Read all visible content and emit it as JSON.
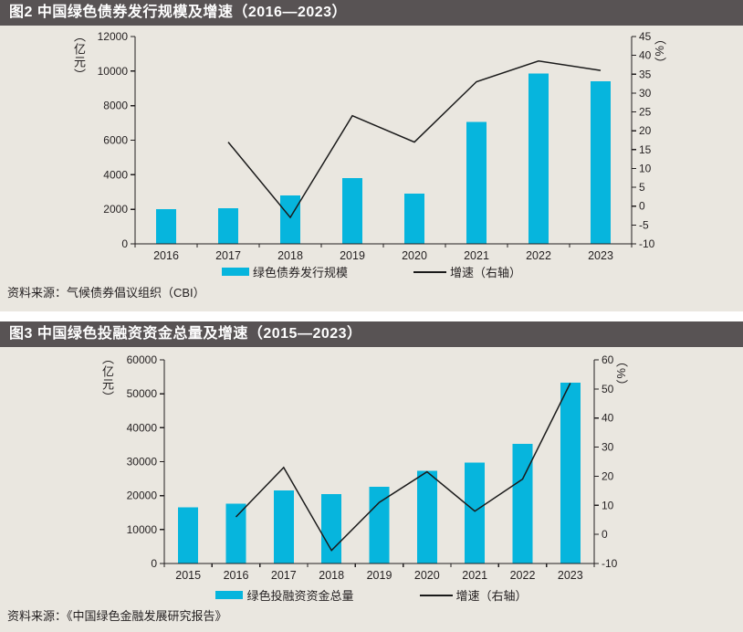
{
  "colors": {
    "bar": "#06B5DD",
    "line": "#1A1A1A",
    "titlebar_bg": "#585354",
    "titlebar_text": "#FFFFFF",
    "section_bg": "#EAE7E0",
    "page_bg": "#FFFFFF",
    "text": "#231F20"
  },
  "chart_data": [
    {
      "type": "combo-bar-line",
      "title": "图2 中国绿色债券发行规模及增速（2016—2023）",
      "source": "资料来源：气候债券倡议组织（CBI）",
      "categories": [
        "2016",
        "2017",
        "2018",
        "2019",
        "2020",
        "2021",
        "2022",
        "2023"
      ],
      "series": [
        {
          "name": "绿色债券发行规模",
          "type": "bar",
          "axis": "left",
          "unit": "亿元",
          "values": [
            2000,
            2050,
            2800,
            3800,
            2900,
            7050,
            9850,
            9400
          ]
        },
        {
          "name": "增速（右轴）",
          "type": "line",
          "axis": "right",
          "unit": "%",
          "values": [
            null,
            17,
            -3,
            24,
            17,
            33,
            38.5,
            36
          ]
        }
      ],
      "left_axis": {
        "label": "（亿元）",
        "min": 0,
        "max": 12000,
        "step": 2000
      },
      "right_axis": {
        "label": "（%）",
        "min": -10,
        "max": 45,
        "step": 5
      },
      "legend": {
        "bar_label": "绿色债券发行规模",
        "line_label": "增速（右轴）",
        "position": "bottom"
      },
      "grid": false
    },
    {
      "type": "combo-bar-line",
      "title": "图3 中国绿色投融资资金总量及增速（2015—2023）",
      "source": "资料来源：《中国绿色金融发展研究报告》",
      "categories": [
        "2015",
        "2016",
        "2017",
        "2018",
        "2019",
        "2020",
        "2021",
        "2022",
        "2023"
      ],
      "series": [
        {
          "name": "绿色投融资资金总量",
          "type": "bar",
          "axis": "left",
          "unit": "亿元",
          "values": [
            16500,
            17600,
            21500,
            20500,
            22600,
            27300,
            29700,
            35200,
            53300
          ]
        },
        {
          "name": "增速（右轴）",
          "type": "line",
          "axis": "right",
          "unit": "%",
          "values": [
            null,
            6,
            23,
            -5.5,
            11,
            21.5,
            8,
            19,
            52
          ]
        }
      ],
      "left_axis": {
        "label": "（亿元）",
        "min": 0,
        "max": 60000,
        "step": 10000
      },
      "right_axis": {
        "label": "（%）",
        "min": -10,
        "max": 60,
        "step": 10
      },
      "legend": {
        "bar_label": "绿色投融资资金总量",
        "line_label": "增速（右轴）",
        "position": "bottom"
      },
      "grid": false
    }
  ]
}
